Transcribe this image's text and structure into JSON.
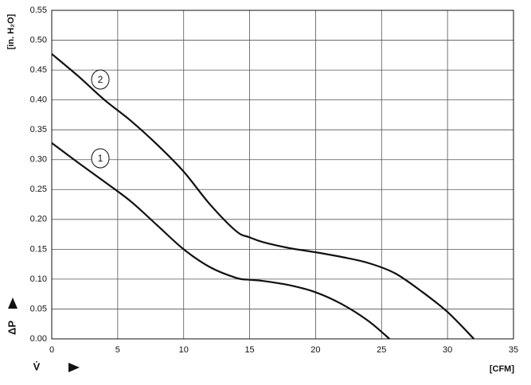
{
  "chart_data": {
    "type": "line",
    "y_label": "[in. H₂O]",
    "x_label": "[CFM]",
    "y_symbol": "ΔP",
    "x_symbol": "V̇",
    "xlim": [
      0,
      35
    ],
    "ylim": [
      0,
      0.55
    ],
    "xticks": [
      0,
      5,
      10,
      15,
      20,
      25,
      30,
      35
    ],
    "yticks": [
      {
        "value": 0,
        "label": "0.00"
      },
      0.05,
      {
        "value": 0.1,
        "label": "0.10"
      },
      0.15,
      {
        "value": 0.2,
        "label": "0.20"
      },
      0.25,
      {
        "value": 0.3,
        "label": "0.30"
      },
      0.35,
      {
        "value": 0.4,
        "label": "0.40"
      },
      0.45,
      {
        "value": 0.5,
        "label": "0.50"
      },
      0.55
    ],
    "grid": true,
    "series": [
      {
        "name": "1",
        "color": "#111111",
        "x": [
          0,
          2,
          4,
          6,
          8,
          10,
          12,
          14,
          15,
          16,
          18,
          20,
          22,
          24,
          25.6
        ],
        "values": [
          0.328,
          0.295,
          0.263,
          0.23,
          0.19,
          0.15,
          0.12,
          0.102,
          0.099,
          0.097,
          0.09,
          0.078,
          0.058,
          0.03,
          0
        ]
      },
      {
        "name": "2",
        "color": "#111111",
        "x": [
          0,
          2,
          4,
          6,
          8,
          10,
          12,
          14,
          15,
          16,
          18,
          20,
          22,
          24,
          26,
          28,
          30,
          32
        ],
        "values": [
          0.477,
          0.44,
          0.4,
          0.365,
          0.325,
          0.28,
          0.225,
          0.18,
          0.17,
          0.162,
          0.152,
          0.145,
          0.137,
          0.127,
          0.11,
          0.08,
          0.045,
          0
        ]
      }
    ]
  }
}
